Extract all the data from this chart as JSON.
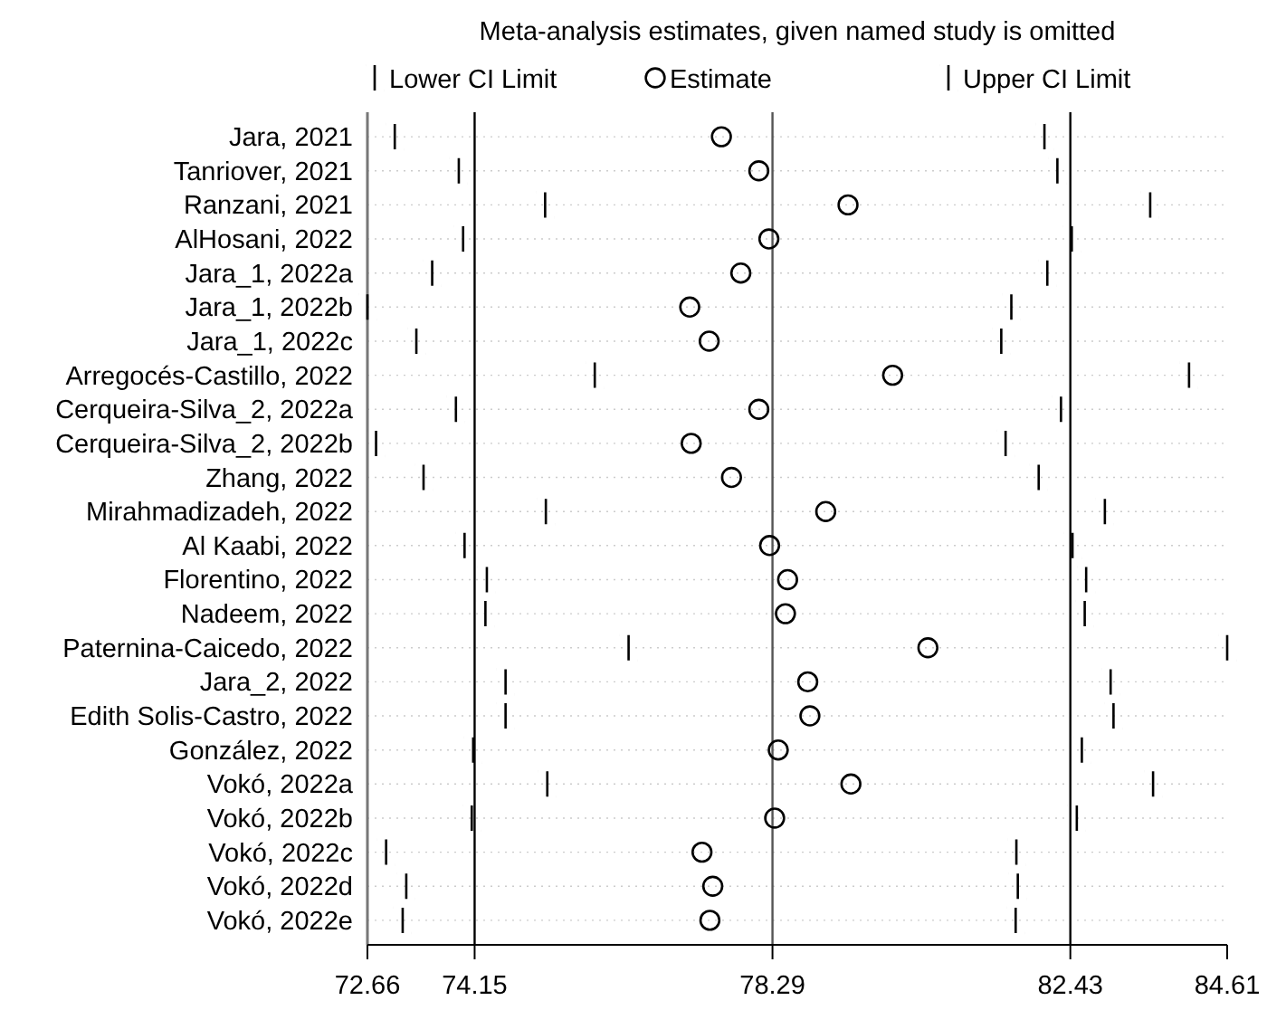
{
  "chart_data": {
    "type": "scatter",
    "orientation": "horizontal",
    "title": "Meta-analysis estimates, given named study is omitted",
    "categories": [
      "Jara, 2021",
      "Tanriover, 2021",
      "Ranzani, 2021",
      "AlHosani, 2022",
      "Jara_1, 2022a",
      "Jara_1, 2022b",
      "Jara_1, 2022c",
      "Arregocés-Castillo, 2022",
      "Cerqueira-Silva_2, 2022a",
      "Cerqueira-Silva_2, 2022b",
      "Zhang, 2022",
      "Mirahmadizadeh, 2022",
      "Al Kaabi, 2022",
      "Florentino, 2022",
      "Nadeem, 2022",
      "Paternina-Caicedo, 2022",
      "Jara_2, 2022",
      "Edith Solis-Castro, 2022",
      "González, 2022",
      "Vokó, 2022a",
      "Vokó, 2022b",
      "Vokó, 2022c",
      "Vokó, 2022d",
      "Vokó, 2022e"
    ],
    "series": [
      {
        "name": "Lower CI Limit",
        "color": "#000000",
        "values": [
          73.04,
          73.93,
          75.13,
          73.99,
          73.56,
          72.66,
          73.34,
          75.82,
          73.89,
          72.78,
          73.44,
          75.14,
          74.01,
          74.32,
          74.3,
          76.29,
          74.58,
          74.58,
          74.13,
          75.16,
          74.11,
          72.92,
          73.2,
          73.15
        ]
      },
      {
        "name": "Estimate",
        "color": "#000000",
        "marker": "circle",
        "values": [
          77.58,
          78.1,
          79.34,
          78.24,
          77.85,
          77.14,
          77.41,
          79.96,
          78.1,
          77.16,
          77.72,
          79.03,
          78.25,
          78.5,
          78.47,
          80.45,
          78.78,
          78.81,
          78.37,
          79.38,
          78.32,
          77.31,
          77.46,
          77.42
        ]
      },
      {
        "name": "Upper CI Limit",
        "color": "#000000",
        "values": [
          82.07,
          82.25,
          83.54,
          82.45,
          82.11,
          81.61,
          81.47,
          84.08,
          82.3,
          81.53,
          81.99,
          82.91,
          82.46,
          82.65,
          82.63,
          84.61,
          82.99,
          83.03,
          82.59,
          83.58,
          82.52,
          81.68,
          81.7,
          81.67
        ]
      }
    ],
    "xlim": [
      72.66,
      84.61
    ],
    "xticks": [
      72.66,
      74.15,
      78.29,
      82.43,
      84.61
    ],
    "ref_lines": [
      {
        "axis": "x",
        "value": 74.15,
        "color": "#000000"
      },
      {
        "axis": "x",
        "value": 78.29,
        "color": "#555555"
      },
      {
        "axis": "x",
        "value": 82.43,
        "color": "#000000"
      }
    ],
    "grid": "y",
    "legend": "top"
  }
}
